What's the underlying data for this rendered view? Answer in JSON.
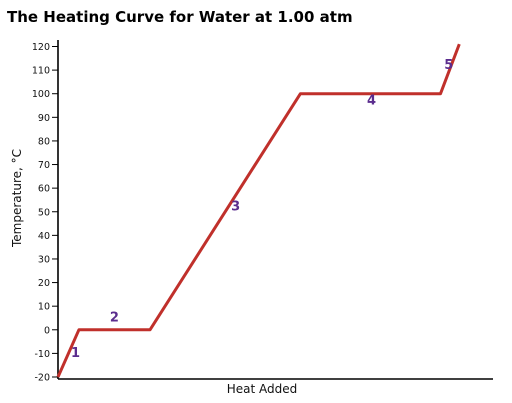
{
  "chart_data": {
    "type": "line",
    "title": "The Heating Curve for Water at 1.00 atm",
    "xlabel": "Heat Added",
    "ylabel": "Temperature, °C",
    "ylim": [
      -20,
      125
    ],
    "xlim": [
      0,
      100
    ],
    "yticks": [
      "-20",
      "-10",
      "0",
      "10",
      "20",
      "30",
      "40",
      "50",
      "60",
      "70",
      "80",
      "90",
      "100",
      "110",
      "120"
    ],
    "grid": false,
    "line_color": "#c0302b",
    "label_color": "#5b2d8e",
    "series": [
      {
        "x": [
          0,
          5,
          22,
          58,
          91.5,
          96
        ],
        "y": [
          -20,
          0,
          0,
          100,
          100,
          121
        ]
      }
    ],
    "annotations": [
      {
        "text": "1",
        "x": 4.2,
        "y": -11.5
      },
      {
        "text": "2",
        "x": 13.5,
        "y": 3.5
      },
      {
        "text": "3",
        "x": 42.5,
        "y": 50.5
      },
      {
        "text": "4",
        "x": 75,
        "y": 95.5
      },
      {
        "text": "5",
        "x": 93.5,
        "y": 110.5
      }
    ]
  }
}
